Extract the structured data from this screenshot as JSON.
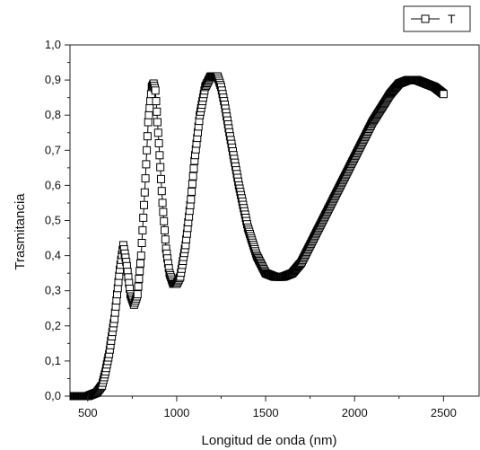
{
  "chart_data": {
    "type": "scatter",
    "xlabel": "Longitud de onda (nm)",
    "ylabel": "Trasmitancia",
    "xlim": [
      400,
      2700
    ],
    "ylim": [
      0,
      1
    ],
    "xticks": [
      500,
      1000,
      1500,
      2000,
      2500
    ],
    "xtick_labels": [
      "500",
      "1000",
      "1500",
      "2000",
      "2500"
    ],
    "yticks": [
      0,
      0.1,
      0.2,
      0.3,
      0.4,
      0.5,
      0.6,
      0.7,
      0.8,
      0.9,
      1.0
    ],
    "ytick_labels": [
      "0,0",
      "0,1",
      "0,2",
      "0,3",
      "0,4",
      "0,5",
      "0,6",
      "0,7",
      "0,8",
      "0,9",
      "1,0"
    ],
    "legend": {
      "position": "top-right",
      "entries": [
        "T"
      ]
    },
    "grid": false,
    "marker": "hollow-square",
    "series": [
      {
        "name": "T",
        "color": "#000000",
        "x": [
          420,
          500,
          550,
          580,
          600,
          620,
          650,
          680,
          700,
          720,
          740,
          760,
          780,
          800,
          820,
          840,
          860,
          870,
          880,
          900,
          920,
          940,
          960,
          980,
          1000,
          1020,
          1050,
          1080,
          1100,
          1130,
          1160,
          1190,
          1210,
          1230,
          1250,
          1270,
          1300,
          1350,
          1400,
          1450,
          1500,
          1550,
          1600,
          1650,
          1700,
          1750,
          1800,
          1850,
          1900,
          1950,
          2000,
          2050,
          2100,
          2150,
          2200,
          2250,
          2300,
          2350,
          2400,
          2450,
          2500
        ],
        "y": [
          0.0,
          0.0,
          0.01,
          0.03,
          0.07,
          0.12,
          0.22,
          0.36,
          0.43,
          0.37,
          0.29,
          0.26,
          0.29,
          0.4,
          0.58,
          0.78,
          0.88,
          0.89,
          0.87,
          0.72,
          0.55,
          0.42,
          0.35,
          0.32,
          0.32,
          0.34,
          0.43,
          0.56,
          0.67,
          0.8,
          0.88,
          0.91,
          0.91,
          0.91,
          0.88,
          0.83,
          0.74,
          0.6,
          0.48,
          0.4,
          0.35,
          0.34,
          0.34,
          0.35,
          0.38,
          0.43,
          0.48,
          0.53,
          0.58,
          0.63,
          0.68,
          0.73,
          0.78,
          0.82,
          0.86,
          0.89,
          0.9,
          0.9,
          0.89,
          0.88,
          0.86
        ]
      }
    ]
  }
}
